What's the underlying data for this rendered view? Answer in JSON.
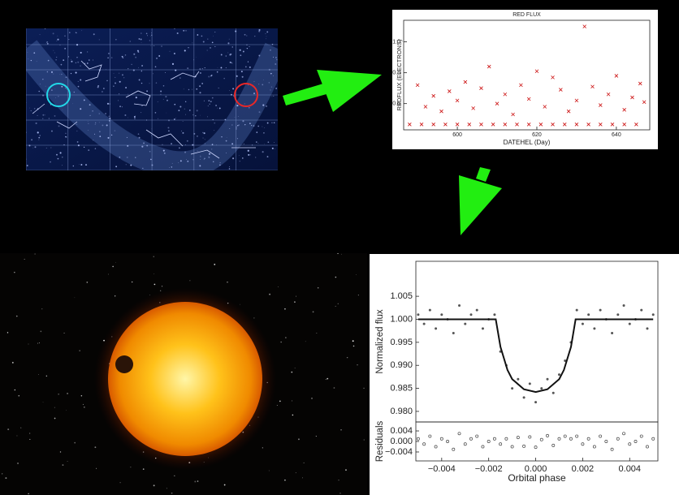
{
  "chart_data": [
    {
      "type": "scatter",
      "title": "RED FLUX",
      "x_label": "DATEHEL (Day)",
      "y_label": "REDFLUX (ELECTRONS)",
      "xlim": [
        586.5,
        648.4
      ],
      "ylim": [
        0.43,
        1.14
      ],
      "xticks": [
        600,
        620,
        640
      ],
      "yticks": [
        0.6,
        0.8,
        {
          "value": 1,
          "label": "1.0"
        }
      ],
      "series": [
        {
          "color": "#cc1111",
          "marker": "x",
          "x": [
            590,
            592,
            594,
            596,
            598,
            600,
            602,
            604,
            606,
            608,
            610,
            612,
            614,
            616,
            618,
            620,
            622,
            624,
            626,
            628,
            630,
            632,
            634,
            636,
            638,
            640,
            642,
            644,
            646,
            647,
            588,
            591,
            594,
            597,
            600,
            603,
            606,
            609,
            612,
            615,
            618,
            621,
            624,
            627,
            630,
            633,
            636,
            639,
            642,
            645
          ],
          "values": [
            0.72,
            0.58,
            0.65,
            0.55,
            0.68,
            0.62,
            0.74,
            0.57,
            0.7,
            0.84,
            0.6,
            0.66,
            0.53,
            0.72,
            0.63,
            0.81,
            0.58,
            0.77,
            0.69,
            0.55,
            0.62,
            1.1,
            0.71,
            0.59,
            0.66,
            0.78,
            0.56,
            0.64,
            0.73,
            0.61,
            0.465,
            0.465,
            0.465,
            0.465,
            0.465,
            0.465,
            0.465,
            0.465,
            0.465,
            0.465,
            0.465,
            0.465,
            0.465,
            0.465,
            0.465,
            0.465,
            0.465,
            0.465,
            0.465,
            0.465
          ]
        }
      ]
    },
    {
      "type": "scatter",
      "y_label": "Normalized flux",
      "xlim": [
        -0.0051,
        0.0052
      ],
      "ylim": [
        0.9777,
        1.0126
      ],
      "yticks": [
        {
          "value": 0.98,
          "label": "0.980"
        },
        {
          "value": 0.985,
          "label": "0.985"
        },
        {
          "value": 0.99,
          "label": "0.990"
        },
        {
          "value": 0.995,
          "label": "0.995"
        },
        {
          "value": 1,
          "label": "1.000"
        },
        1.005
      ],
      "series": [
        {
          "color": "#555555",
          "marker": "dot",
          "x": [
            -0.005,
            -0.00475,
            -0.0045,
            -0.00425,
            -0.004,
            -0.00375,
            -0.0035,
            -0.00325,
            -0.003,
            -0.00275,
            -0.0025,
            -0.00225,
            -0.002,
            -0.00175,
            -0.0015,
            -0.00125,
            -0.001,
            -0.00075,
            -0.0005,
            -0.00025,
            0,
            0.00025,
            0.0005,
            0.00075,
            0.001,
            0.00125,
            0.0015,
            0.00175,
            0.002,
            0.00225,
            0.0025,
            0.00275,
            0.003,
            0.00325,
            0.0035,
            0.00375,
            0.004,
            0.00425,
            0.0045,
            0.00475,
            0.005
          ],
          "values": [
            1.001,
            0.999,
            1.002,
            0.998,
            1.001,
            1.0,
            0.997,
            1.003,
            0.999,
            1.001,
            1.002,
            0.998,
            1.0,
            1.001,
            0.993,
            0.99,
            0.985,
            0.987,
            0.983,
            0.986,
            0.982,
            0.985,
            0.987,
            0.984,
            0.988,
            0.991,
            0.995,
            1.002,
            0.999,
            1.001,
            0.998,
            1.002,
            1.0,
            0.997,
            1.001,
            1.003,
            0.999,
            1.0,
            1.002,
            0.998,
            1.001
          ]
        },
        {
          "color": "#111111",
          "style": "line",
          "x": [
            -0.005,
            -0.004,
            -0.003,
            -0.002,
            -0.0017,
            -0.0015,
            -0.0012,
            -0.001,
            -0.0005,
            0,
            0.0005,
            0.001,
            0.0012,
            0.0015,
            0.0017,
            0.002,
            0.003,
            0.004,
            0.005
          ],
          "values": [
            1,
            1,
            1,
            1,
            1,
            0.994,
            0.989,
            0.987,
            0.9848,
            0.9842,
            0.9848,
            0.987,
            0.989,
            0.994,
            1,
            1,
            1,
            1,
            1
          ]
        }
      ]
    },
    {
      "type": "scatter",
      "y_label": "Residuals",
      "x_label": "Orbital phase",
      "xlim": [
        -0.0051,
        0.0052
      ],
      "ylim": [
        -0.0074,
        0.0074
      ],
      "xticks": [
        {
          "value": -0.004,
          "label": "−0.004"
        },
        {
          "value": -0.002,
          "label": "−0.002"
        },
        {
          "value": 0,
          "label": "0.000"
        },
        0.002,
        0.004
      ],
      "yticks": [
        {
          "value": -0.004,
          "label": "−0.004"
        },
        {
          "value": 0,
          "label": "0.000"
        },
        0.004
      ],
      "series": [
        {
          "color": "#444444",
          "marker": "circle",
          "x": [
            -0.005,
            -0.00475,
            -0.0045,
            -0.00425,
            -0.004,
            -0.00375,
            -0.0035,
            -0.00325,
            -0.003,
            -0.00275,
            -0.0025,
            -0.00225,
            -0.002,
            -0.00175,
            -0.0015,
            -0.00125,
            -0.001,
            -0.00075,
            -0.0005,
            -0.00025,
            0,
            0.00025,
            0.0005,
            0.00075,
            0.001,
            0.00125,
            0.0015,
            0.00175,
            0.002,
            0.00225,
            0.0025,
            0.00275,
            0.003,
            0.00325,
            0.0035,
            0.00375,
            0.004,
            0.00425,
            0.0045,
            0.00475,
            0.005
          ],
          "values": [
            0.001,
            -0.001,
            0.002,
            -0.002,
            0.001,
            0,
            -0.003,
            0.003,
            -0.001,
            0.001,
            0.002,
            -0.002,
            0,
            0.001,
            -0.001,
            0.001,
            -0.002,
            0.0015,
            -0.0018,
            0.0017,
            -0.0022,
            0.0007,
            0.0022,
            -0.0015,
            0.001,
            0.002,
            0.001,
            0.002,
            -0.001,
            0.001,
            -0.002,
            0.002,
            0,
            -0.003,
            0.001,
            0.003,
            -0.001,
            0,
            0.002,
            -0.002,
            0.001
          ]
        }
      ]
    }
  ]
}
